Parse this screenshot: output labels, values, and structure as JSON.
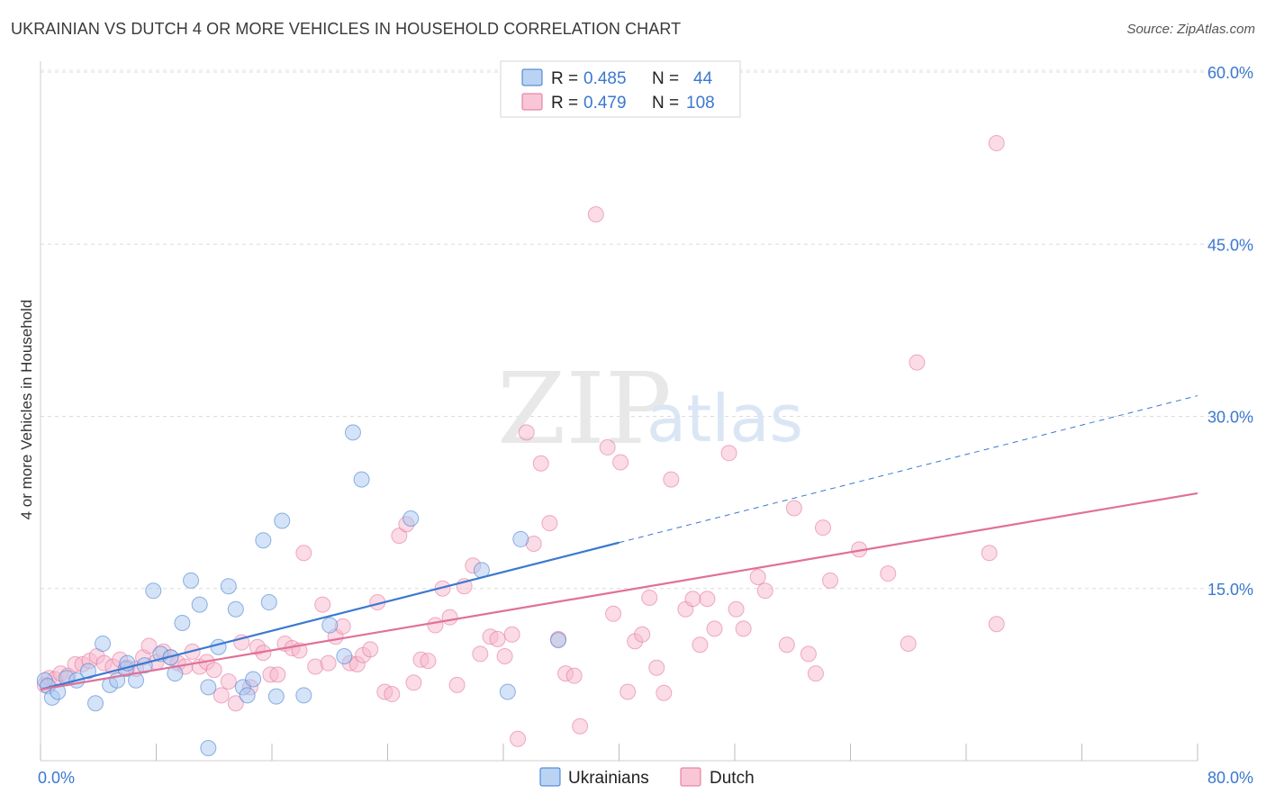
{
  "title": "UKRAINIAN VS DUTCH 4 OR MORE VEHICLES IN HOUSEHOLD CORRELATION CHART",
  "source": "Source: ZipAtlas.com",
  "watermark": {
    "zip": "ZIP",
    "atlas": "atlas"
  },
  "legend": {
    "rows": [
      {
        "r_label": "R =",
        "r_value": "0.485",
        "n_label": "N =",
        "n_value": "44",
        "color": "#a9c8f0"
      },
      {
        "r_label": "R =",
        "r_value": "0.479",
        "n_label": "N =",
        "n_value": "108",
        "color": "#f7b8cc"
      }
    ]
  },
  "bottom_legend": [
    {
      "label": "Ukrainians",
      "color": "#a9c8f0"
    },
    {
      "label": "Dutch",
      "color": "#f7b8cc"
    }
  ],
  "chart_data": {
    "type": "scatter",
    "title": "UKRAINIAN VS DUTCH 4 OR MORE VEHICLES IN HOUSEHOLD CORRELATION CHART",
    "xlabel": "",
    "ylabel": "4 or more Vehicles in Household",
    "xlim": [
      0,
      80
    ],
    "ylim": [
      0,
      60
    ],
    "x_tick_labels": [
      "0.0%",
      "80.0%"
    ],
    "y_ticks": [
      15,
      30,
      45,
      60
    ],
    "y_tick_labels": [
      "15.0%",
      "30.0%",
      "45.0%",
      "60.0%"
    ],
    "grid": "horizontal dashed",
    "legend_position": "top-center",
    "series": [
      {
        "name": "Ukrainians",
        "color": "#3b78d0",
        "fill": "#a9c8f0",
        "trend": {
          "x": [
            0,
            40
          ],
          "y": [
            6.2,
            19.0
          ],
          "extended_to": [
            80,
            31.8
          ]
        },
        "points": [
          [
            0.3,
            7.0
          ],
          [
            0.5,
            6.5
          ],
          [
            0.8,
            5.5
          ],
          [
            1.2,
            6.0
          ],
          [
            1.8,
            7.2
          ],
          [
            2.5,
            7.0
          ],
          [
            3.3,
            7.8
          ],
          [
            3.8,
            5.0
          ],
          [
            4.3,
            10.2
          ],
          [
            4.8,
            6.6
          ],
          [
            5.3,
            7.0
          ],
          [
            5.9,
            8.0
          ],
          [
            6.6,
            7.0
          ],
          [
            7.2,
            8.3
          ],
          [
            7.8,
            14.8
          ],
          [
            8.3,
            9.3
          ],
          [
            9.3,
            7.6
          ],
          [
            9.8,
            12.0
          ],
          [
            10.4,
            15.7
          ],
          [
            11.0,
            13.6
          ],
          [
            11.6,
            6.4
          ],
          [
            12.3,
            9.9
          ],
          [
            13.0,
            15.2
          ],
          [
            13.5,
            13.2
          ],
          [
            14.0,
            6.4
          ],
          [
            14.7,
            7.1
          ],
          [
            15.4,
            19.2
          ],
          [
            15.8,
            13.8
          ],
          [
            16.3,
            5.6
          ],
          [
            16.7,
            20.9
          ],
          [
            18.2,
            5.7
          ],
          [
            20.0,
            11.8
          ],
          [
            21.0,
            9.1
          ],
          [
            21.6,
            28.6
          ],
          [
            22.2,
            24.5
          ],
          [
            25.6,
            21.1
          ],
          [
            30.5,
            16.6
          ],
          [
            32.3,
            6.0
          ],
          [
            33.2,
            19.3
          ],
          [
            35.8,
            10.5
          ],
          [
            11.6,
            1.1
          ],
          [
            14.3,
            5.7
          ],
          [
            9.0,
            9.0
          ],
          [
            6.0,
            8.5
          ]
        ]
      },
      {
        "name": "Dutch",
        "color": "#e0709a",
        "fill": "#f7b8cc",
        "trend": {
          "x": [
            0,
            80
          ],
          "y": [
            6.2,
            23.3
          ]
        },
        "points": [
          [
            0.3,
            6.6
          ],
          [
            0.6,
            7.2
          ],
          [
            1.0,
            7.1
          ],
          [
            1.4,
            7.6
          ],
          [
            1.9,
            7.4
          ],
          [
            2.4,
            8.4
          ],
          [
            2.9,
            8.4
          ],
          [
            3.4,
            8.7
          ],
          [
            3.9,
            9.1
          ],
          [
            4.4,
            8.5
          ],
          [
            5.0,
            8.2
          ],
          [
            5.5,
            8.8
          ],
          [
            6.0,
            8.1
          ],
          [
            6.6,
            8.0
          ],
          [
            7.1,
            9.0
          ],
          [
            7.5,
            10.0
          ],
          [
            8.0,
            8.6
          ],
          [
            8.5,
            9.5
          ],
          [
            9.0,
            9.0
          ],
          [
            9.5,
            8.5
          ],
          [
            10.0,
            8.2
          ],
          [
            10.5,
            9.5
          ],
          [
            11.0,
            8.2
          ],
          [
            11.5,
            8.6
          ],
          [
            12.0,
            7.9
          ],
          [
            12.5,
            5.7
          ],
          [
            13.0,
            6.9
          ],
          [
            13.5,
            5.0
          ],
          [
            13.9,
            10.3
          ],
          [
            14.5,
            6.4
          ],
          [
            15.0,
            9.9
          ],
          [
            15.4,
            9.4
          ],
          [
            15.9,
            7.5
          ],
          [
            16.4,
            7.5
          ],
          [
            16.9,
            10.2
          ],
          [
            17.4,
            9.8
          ],
          [
            17.9,
            9.6
          ],
          [
            18.2,
            18.1
          ],
          [
            19.0,
            8.2
          ],
          [
            19.5,
            13.6
          ],
          [
            19.9,
            8.5
          ],
          [
            20.4,
            10.8
          ],
          [
            20.9,
            11.7
          ],
          [
            21.4,
            8.5
          ],
          [
            21.9,
            8.4
          ],
          [
            22.3,
            9.2
          ],
          [
            22.8,
            9.7
          ],
          [
            23.3,
            13.8
          ],
          [
            23.8,
            6.0
          ],
          [
            24.3,
            5.8
          ],
          [
            24.8,
            19.6
          ],
          [
            25.3,
            20.6
          ],
          [
            25.8,
            6.8
          ],
          [
            26.3,
            8.8
          ],
          [
            26.8,
            8.7
          ],
          [
            27.3,
            11.8
          ],
          [
            27.8,
            15.0
          ],
          [
            28.3,
            12.5
          ],
          [
            28.8,
            6.6
          ],
          [
            29.3,
            15.2
          ],
          [
            29.9,
            17.0
          ],
          [
            30.4,
            9.3
          ],
          [
            31.1,
            10.8
          ],
          [
            31.6,
            10.6
          ],
          [
            32.1,
            9.1
          ],
          [
            32.6,
            11.0
          ],
          [
            33.0,
            1.9
          ],
          [
            33.6,
            28.6
          ],
          [
            34.1,
            18.9
          ],
          [
            34.6,
            25.9
          ],
          [
            35.2,
            20.7
          ],
          [
            35.8,
            10.6
          ],
          [
            36.3,
            7.6
          ],
          [
            36.9,
            7.4
          ],
          [
            37.3,
            3.0
          ],
          [
            38.4,
            47.6
          ],
          [
            39.2,
            27.3
          ],
          [
            39.6,
            12.8
          ],
          [
            40.1,
            26.0
          ],
          [
            40.6,
            6.0
          ],
          [
            41.1,
            10.4
          ],
          [
            41.6,
            11.0
          ],
          [
            42.1,
            14.2
          ],
          [
            42.6,
            8.1
          ],
          [
            43.1,
            5.9
          ],
          [
            43.6,
            24.5
          ],
          [
            44.6,
            13.2
          ],
          [
            45.1,
            14.1
          ],
          [
            45.6,
            10.1
          ],
          [
            46.1,
            14.1
          ],
          [
            46.6,
            11.5
          ],
          [
            47.6,
            26.8
          ],
          [
            48.1,
            13.2
          ],
          [
            48.6,
            11.5
          ],
          [
            49.6,
            16.0
          ],
          [
            50.1,
            14.8
          ],
          [
            51.6,
            10.1
          ],
          [
            52.1,
            22.0
          ],
          [
            53.1,
            9.3
          ],
          [
            53.6,
            7.6
          ],
          [
            54.1,
            20.3
          ],
          [
            54.6,
            15.7
          ],
          [
            56.6,
            18.4
          ],
          [
            58.6,
            16.3
          ],
          [
            60.0,
            10.2
          ],
          [
            60.6,
            34.7
          ],
          [
            65.6,
            18.1
          ],
          [
            66.1,
            11.9
          ],
          [
            66.1,
            53.8
          ]
        ]
      }
    ]
  }
}
